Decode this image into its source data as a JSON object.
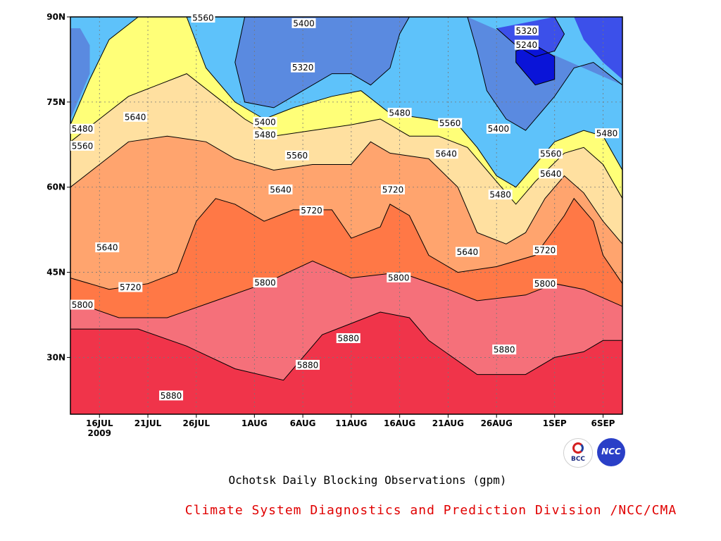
{
  "chart_data": {
    "type": "contour",
    "subtitle": "Ochotsk Daily Blocking Observations (gpm)",
    "credit": "Climate System Diagnostics and Prediction Division /NCC/CMA",
    "x_axis": {
      "range": [
        "2009-07-13",
        "2009-09-09"
      ],
      "ticks": [
        {
          "day": 16,
          "label": "16JUL",
          "sub": "2009"
        },
        {
          "day": 21,
          "label": "21JUL"
        },
        {
          "day": 26,
          "label": "26JUL"
        },
        {
          "day": 32,
          "label": "1AUG"
        },
        {
          "day": 37,
          "label": "6AUG"
        },
        {
          "day": 42,
          "label": "11AUG"
        },
        {
          "day": 47,
          "label": "16AUG"
        },
        {
          "day": 52,
          "label": "21AUG"
        },
        {
          "day": 57,
          "label": "26AUG"
        },
        {
          "day": 63,
          "label": "1SEP"
        },
        {
          "day": 68,
          "label": "6SEP"
        }
      ]
    },
    "y_axis": {
      "range": [
        20,
        90
      ],
      "ticks": [
        {
          "lat": 30,
          "label": "30N"
        },
        {
          "lat": 45,
          "label": "45N"
        },
        {
          "lat": 60,
          "label": "60N"
        },
        {
          "lat": 75,
          "label": "75N"
        },
        {
          "lat": 90,
          "label": "90N"
        }
      ]
    },
    "grid": true,
    "levels": [
      5240,
      5320,
      5400,
      5480,
      5560,
      5640,
      5720,
      5800,
      5880
    ],
    "level_colors": [
      "#0a14d8",
      "#3c50ea",
      "#5a8ae0",
      "#5ec2fa",
      "#ffff78",
      "#ffe0a0",
      "#ffa46e",
      "#ff7846",
      "#f5707a",
      "#f0344a"
    ],
    "contours": [
      {
        "level": 5880,
        "points": [
          [
            13,
            35
          ],
          [
            20,
            35
          ],
          [
            25,
            32
          ],
          [
            30,
            28
          ],
          [
            35,
            26
          ],
          [
            37,
            30
          ],
          [
            39,
            34
          ],
          [
            42,
            36
          ],
          [
            45,
            38
          ],
          [
            48,
            37
          ],
          [
            50,
            33
          ],
          [
            55,
            27
          ],
          [
            60,
            27
          ],
          [
            63,
            30
          ],
          [
            66,
            31
          ],
          [
            68,
            33
          ],
          [
            70,
            33
          ]
        ]
      },
      {
        "level": 5800,
        "points": [
          [
            13,
            40
          ],
          [
            18,
            37
          ],
          [
            23,
            37
          ],
          [
            28,
            40
          ],
          [
            33,
            43
          ],
          [
            38,
            47
          ],
          [
            42,
            44
          ],
          [
            47,
            45
          ],
          [
            52,
            42
          ],
          [
            55,
            40
          ],
          [
            60,
            41
          ],
          [
            63,
            43
          ],
          [
            66,
            42
          ],
          [
            70,
            39
          ]
        ]
      },
      {
        "level": 5720,
        "points": [
          [
            13,
            44
          ],
          [
            17,
            42
          ],
          [
            21,
            43
          ],
          [
            24,
            45
          ],
          [
            26,
            54
          ],
          [
            28,
            58
          ],
          [
            30,
            57
          ],
          [
            33,
            54
          ],
          [
            36,
            56
          ],
          [
            40,
            56
          ],
          [
            42,
            51
          ],
          [
            45,
            53
          ],
          [
            46,
            57
          ],
          [
            48,
            55
          ],
          [
            50,
            48
          ],
          [
            53,
            45
          ],
          [
            57,
            46
          ],
          [
            61,
            48
          ],
          [
            64,
            55
          ],
          [
            65,
            58
          ],
          [
            67,
            54
          ],
          [
            68,
            48
          ],
          [
            70,
            43
          ]
        ]
      },
      {
        "level": 5640,
        "points": [
          [
            13,
            60
          ],
          [
            16,
            64
          ],
          [
            19,
            68
          ],
          [
            23,
            69
          ],
          [
            27,
            68
          ],
          [
            30,
            65
          ],
          [
            34,
            63
          ],
          [
            38,
            64
          ],
          [
            42,
            64
          ],
          [
            44,
            68
          ],
          [
            46,
            66
          ],
          [
            50,
            65
          ],
          [
            53,
            60
          ],
          [
            55,
            52
          ],
          [
            58,
            50
          ],
          [
            60,
            52
          ],
          [
            62,
            58
          ],
          [
            64,
            62
          ],
          [
            66,
            59
          ],
          [
            68,
            54
          ],
          [
            70,
            50
          ]
        ]
      },
      {
        "level": 5560,
        "points": [
          [
            13,
            68
          ],
          [
            16,
            72
          ],
          [
            19,
            76
          ],
          [
            22,
            78
          ],
          [
            25,
            80
          ],
          [
            28,
            76
          ],
          [
            31,
            72
          ],
          [
            34,
            69
          ],
          [
            38,
            70
          ],
          [
            42,
            71
          ],
          [
            45,
            72
          ],
          [
            48,
            69
          ],
          [
            51,
            69
          ],
          [
            54,
            67
          ],
          [
            57,
            61
          ],
          [
            59,
            57
          ],
          [
            61,
            61
          ],
          [
            64,
            66
          ],
          [
            66,
            67
          ],
          [
            68,
            64
          ],
          [
            70,
            58
          ]
        ]
      },
      {
        "level": 5480,
        "points": [
          [
            13,
            71
          ],
          [
            15,
            79
          ],
          [
            17,
            86
          ],
          [
            20,
            90
          ]
        ]
      },
      {
        "level": 5480,
        "points": [
          [
            25,
            90
          ],
          [
            27,
            81
          ],
          [
            30,
            75
          ],
          [
            33,
            72
          ],
          [
            36,
            74
          ],
          [
            40,
            76
          ],
          [
            43,
            77
          ],
          [
            46,
            73
          ],
          [
            50,
            72
          ],
          [
            53,
            71
          ],
          [
            55,
            67
          ],
          [
            57,
            62
          ],
          [
            59,
            60
          ],
          [
            61,
            64
          ],
          [
            63,
            68
          ],
          [
            66,
            70
          ],
          [
            68,
            69
          ],
          [
            70,
            63
          ]
        ]
      },
      {
        "level": 5400,
        "points": [
          [
            31,
            90
          ],
          [
            30,
            82
          ],
          [
            31,
            75
          ],
          [
            34,
            74
          ],
          [
            37,
            77
          ],
          [
            40,
            80
          ],
          [
            42,
            80
          ],
          [
            44,
            78
          ],
          [
            46,
            81
          ],
          [
            47,
            87
          ],
          [
            48,
            90
          ]
        ]
      },
      {
        "level": 5400,
        "points": [
          [
            54,
            90
          ],
          [
            55,
            84
          ],
          [
            56,
            77
          ],
          [
            58,
            72
          ],
          [
            60,
            70
          ],
          [
            63,
            76
          ],
          [
            65,
            81
          ],
          [
            67,
            82
          ],
          [
            70,
            78
          ]
        ]
      },
      {
        "level": 5320,
        "points": [
          [
            57,
            88
          ],
          [
            59,
            85
          ],
          [
            61,
            83
          ],
          [
            63,
            84
          ],
          [
            64,
            87
          ],
          [
            63,
            90
          ]
        ]
      },
      {
        "level": 5240,
        "points": [
          [
            59,
            82
          ],
          [
            61,
            78
          ],
          [
            63,
            79
          ],
          [
            63,
            83
          ],
          [
            61,
            85
          ],
          [
            59,
            84
          ],
          [
            59,
            82
          ]
        ]
      }
    ],
    "contour_labels": [
      {
        "day": 26.7,
        "lat": 90.0,
        "text": "5560"
      },
      {
        "day": 37.1,
        "lat": 88.9,
        "text": "5400"
      },
      {
        "day": 60.1,
        "lat": 87.6,
        "text": "5320"
      },
      {
        "day": 60.1,
        "lat": 85.1,
        "text": "5240"
      },
      {
        "day": 37.0,
        "lat": 81.1,
        "text": "5320"
      },
      {
        "day": 13.5,
        "lat": 70.3,
        "text": "5480"
      },
      {
        "day": 19.7,
        "lat": 72.4,
        "text": "5640"
      },
      {
        "day": 33.1,
        "lat": 71.5,
        "text": "5400"
      },
      {
        "day": 33.1,
        "lat": 69.3,
        "text": "5480"
      },
      {
        "day": 47.0,
        "lat": 73.1,
        "text": "5480"
      },
      {
        "day": 52.2,
        "lat": 71.3,
        "text": "5560"
      },
      {
        "day": 57.2,
        "lat": 70.3,
        "text": "5400"
      },
      {
        "day": 68.4,
        "lat": 69.5,
        "text": "5480"
      },
      {
        "day": 13.5,
        "lat": 67.3,
        "text": "5560"
      },
      {
        "day": 36.4,
        "lat": 65.6,
        "text": "5560"
      },
      {
        "day": 51.8,
        "lat": 65.9,
        "text": "5640"
      },
      {
        "day": 62.6,
        "lat": 65.9,
        "text": "5560"
      },
      {
        "day": 62.6,
        "lat": 62.4,
        "text": "5640"
      },
      {
        "day": 34.7,
        "lat": 59.6,
        "text": "5640"
      },
      {
        "day": 46.3,
        "lat": 59.6,
        "text": "5720"
      },
      {
        "day": 57.4,
        "lat": 58.7,
        "text": "5480"
      },
      {
        "day": 37.9,
        "lat": 55.9,
        "text": "5720"
      },
      {
        "day": 16.8,
        "lat": 49.4,
        "text": "5640"
      },
      {
        "day": 54.0,
        "lat": 48.6,
        "text": "5640"
      },
      {
        "day": 62.0,
        "lat": 48.9,
        "text": "5720"
      },
      {
        "day": 46.9,
        "lat": 44.1,
        "text": "5800"
      },
      {
        "day": 33.1,
        "lat": 43.2,
        "text": "5800"
      },
      {
        "day": 62.0,
        "lat": 43.0,
        "text": "5800"
      },
      {
        "day": 19.2,
        "lat": 42.4,
        "text": "5720"
      },
      {
        "day": 14.0,
        "lat": 39.3,
        "text": "5800"
      },
      {
        "day": 41.7,
        "lat": 33.4,
        "text": "5880"
      },
      {
        "day": 57.8,
        "lat": 31.4,
        "text": "5880"
      },
      {
        "day": 37.5,
        "lat": 28.7,
        "text": "5880"
      },
      {
        "day": 23.4,
        "lat": 23.3,
        "text": "5880"
      }
    ]
  },
  "logos": {
    "bcc_text": "BCC",
    "ncc_text": "NCC"
  }
}
